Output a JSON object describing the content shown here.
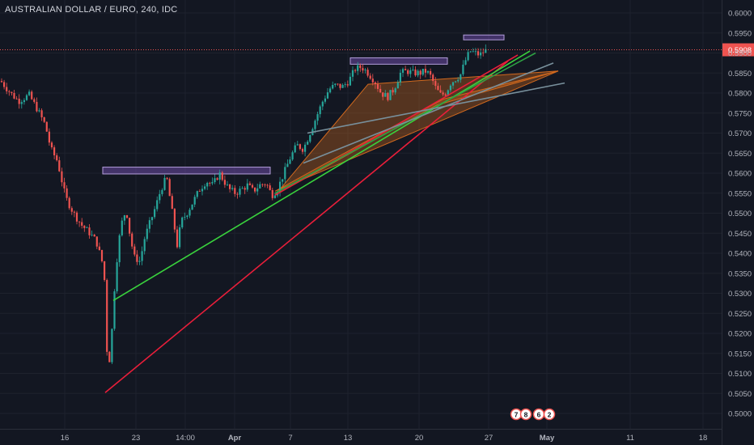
{
  "chart_data": {
    "type": "candlestick",
    "title": "AUSTRALIAN DOLLAR / EURO, 240, IDC",
    "y_axis": {
      "range": [
        0.4975,
        0.6025
      ],
      "ticks": [
        "0.6000",
        "0.5950",
        "0.5900",
        "0.5850",
        "0.5800",
        "0.5750",
        "0.5700",
        "0.5650",
        "0.5600",
        "0.5550",
        "0.5500",
        "0.5450",
        "0.5400",
        "0.5350",
        "0.5300",
        "0.5250",
        "0.5200",
        "0.5150",
        "0.5100",
        "0.5050",
        "0.5000"
      ]
    },
    "x_axis": {
      "ticks": [
        "16",
        "23",
        "14:00",
        "Apr",
        "7",
        "13",
        "20",
        "27",
        "May",
        "11",
        "18"
      ]
    },
    "current_price": {
      "label": "0.5908",
      "value": 0.5908
    },
    "price_path": [
      [
        0,
        0.583
      ],
      [
        12,
        0.58
      ],
      [
        22,
        0.578
      ],
      [
        35,
        0.5795
      ],
      [
        45,
        0.576
      ],
      [
        55,
        0.572
      ],
      [
        62,
        0.566
      ],
      [
        70,
        0.563
      ],
      [
        80,
        0.554
      ],
      [
        90,
        0.55
      ],
      [
        100,
        0.547
      ],
      [
        110,
        0.545
      ],
      [
        118,
        0.543
      ],
      [
        125,
        0.538
      ],
      [
        129,
        0.532
      ],
      [
        132,
        0.51
      ],
      [
        136,
        0.516
      ],
      [
        140,
        0.53
      ],
      [
        145,
        0.542
      ],
      [
        150,
        0.548
      ],
      [
        155,
        0.551
      ],
      [
        160,
        0.544
      ],
      [
        165,
        0.539
      ],
      [
        172,
        0.538
      ],
      [
        178,
        0.544
      ],
      [
        185,
        0.548
      ],
      [
        192,
        0.552
      ],
      [
        198,
        0.556
      ],
      [
        205,
        0.559
      ],
      [
        212,
        0.55
      ],
      [
        218,
        0.542
      ],
      [
        223,
        0.548
      ],
      [
        230,
        0.55
      ],
      [
        238,
        0.553
      ],
      [
        246,
        0.556
      ],
      [
        254,
        0.558
      ],
      [
        262,
        0.557
      ],
      [
        270,
        0.56
      ],
      [
        276,
        0.558
      ],
      [
        282,
        0.556
      ],
      [
        290,
        0.555
      ],
      [
        298,
        0.556
      ],
      [
        305,
        0.557
      ],
      [
        312,
        0.5555
      ],
      [
        320,
        0.557
      ],
      [
        328,
        0.5575
      ],
      [
        335,
        0.5545
      ],
      [
        342,
        0.556
      ],
      [
        350,
        0.56
      ],
      [
        358,
        0.564
      ],
      [
        366,
        0.567
      ],
      [
        374,
        0.566
      ],
      [
        382,
        0.57
      ],
      [
        390,
        0.574
      ],
      [
        398,
        0.578
      ],
      [
        406,
        0.581
      ],
      [
        414,
        0.582
      ],
      [
        422,
        0.5815
      ],
      [
        430,
        0.583
      ],
      [
        438,
        0.586
      ],
      [
        446,
        0.5865
      ],
      [
        454,
        0.585
      ],
      [
        462,
        0.583
      ],
      [
        470,
        0.58
      ],
      [
        478,
        0.579
      ],
      [
        486,
        0.581
      ],
      [
        494,
        0.585
      ],
      [
        502,
        0.5855
      ],
      [
        510,
        0.585
      ],
      [
        518,
        0.585
      ],
      [
        526,
        0.5855
      ],
      [
        532,
        0.584
      ],
      [
        538,
        0.581
      ],
      [
        544,
        0.5795
      ],
      [
        550,
        0.58
      ],
      [
        556,
        0.5825
      ],
      [
        562,
        0.5835
      ],
      [
        568,
        0.5845
      ],
      [
        574,
        0.588
      ],
      [
        580,
        0.5905
      ],
      [
        586,
        0.59
      ],
      [
        592,
        0.5895
      ],
      [
        598,
        0.5905
      ],
      [
        602,
        0.5908
      ]
    ],
    "drawings": {
      "trendlines": [
        {
          "color": "#e91e3a",
          "from": [
            130,
            0.5052
          ],
          "to": [
            628,
            0.588
          ]
        },
        {
          "color": "#e91e3a",
          "from": [
            340,
            0.5545
          ],
          "to": [
            640,
            0.5895
          ]
        },
        {
          "color": "#39d33d",
          "from": [
            140,
            0.5282
          ],
          "to": [
            655,
            0.5905
          ]
        },
        {
          "color": "#2ea043",
          "from": [
            340,
            0.555
          ],
          "to": [
            662,
            0.59
          ]
        },
        {
          "color": "#78909c",
          "from": [
            375,
            0.5625
          ],
          "to": [
            684,
            0.5875
          ]
        },
        {
          "color": "#78909c",
          "from": [
            380,
            0.57
          ],
          "to": [
            698,
            0.5825
          ]
        }
      ],
      "channels": [
        {
          "color": "#d2691e",
          "points": [
            [
              340,
              0.5545
            ],
            [
              455,
              0.5822
            ],
            [
              690,
              0.5855
            ],
            [
              540,
              0.577
            ]
          ]
        },
        {
          "color": "#d2691e",
          "points": [
            [
              340,
              0.5555
            ],
            [
              548,
              0.5785
            ],
            [
              690,
              0.5855
            ]
          ]
        }
      ],
      "resistance_boxes": [
        {
          "x1": 127,
          "x2": 334,
          "y1": 0.5598,
          "y2": 0.5615
        },
        {
          "x1": 433,
          "x2": 553,
          "y1": 0.5872,
          "y2": 0.5888
        },
        {
          "x1": 573,
          "x2": 623,
          "y1": 0.5933,
          "y2": 0.5945
        }
      ]
    },
    "event_markers": [
      "7",
      "8",
      "6",
      "2"
    ]
  }
}
